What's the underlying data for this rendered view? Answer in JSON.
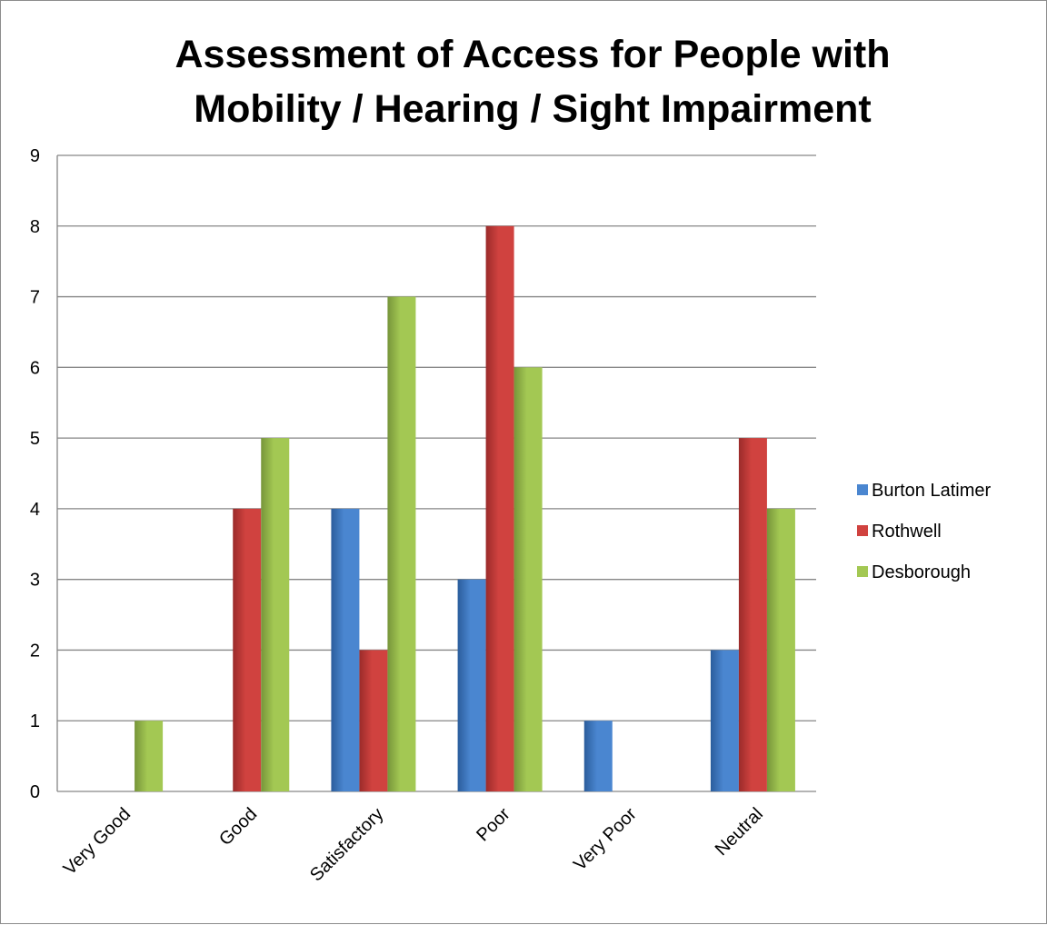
{
  "chart_data": {
    "type": "bar",
    "title_lines": [
      "Assessment of Access for People with",
      "Mobility / Hearing / Sight Impairment"
    ],
    "categories": [
      "Very Good",
      "Good",
      "Satisfactory",
      "Poor",
      "Very Poor",
      "Neutral"
    ],
    "series": [
      {
        "name": "Burton Latimer",
        "values": [
          0,
          0,
          4,
          3,
          1,
          2
        ]
      },
      {
        "name": "Rothwell",
        "values": [
          0,
          4,
          2,
          8,
          0,
          5
        ]
      },
      {
        "name": "Desborough",
        "values": [
          1,
          5,
          7,
          6,
          0,
          4
        ]
      }
    ],
    "ylim": [
      0,
      9
    ],
    "yticks": [
      "0",
      "1",
      "2",
      "3",
      "4",
      "5",
      "6",
      "7",
      "8",
      "9"
    ],
    "grid": true,
    "legend_position": "right",
    "colors": {
      "Burton Latimer": [
        "#2b5d9c",
        "#4a86d0"
      ],
      "Rothwell": [
        "#9b2b2a",
        "#d0423f"
      ],
      "Desborough": [
        "#77953a",
        "#a3c853"
      ]
    }
  }
}
